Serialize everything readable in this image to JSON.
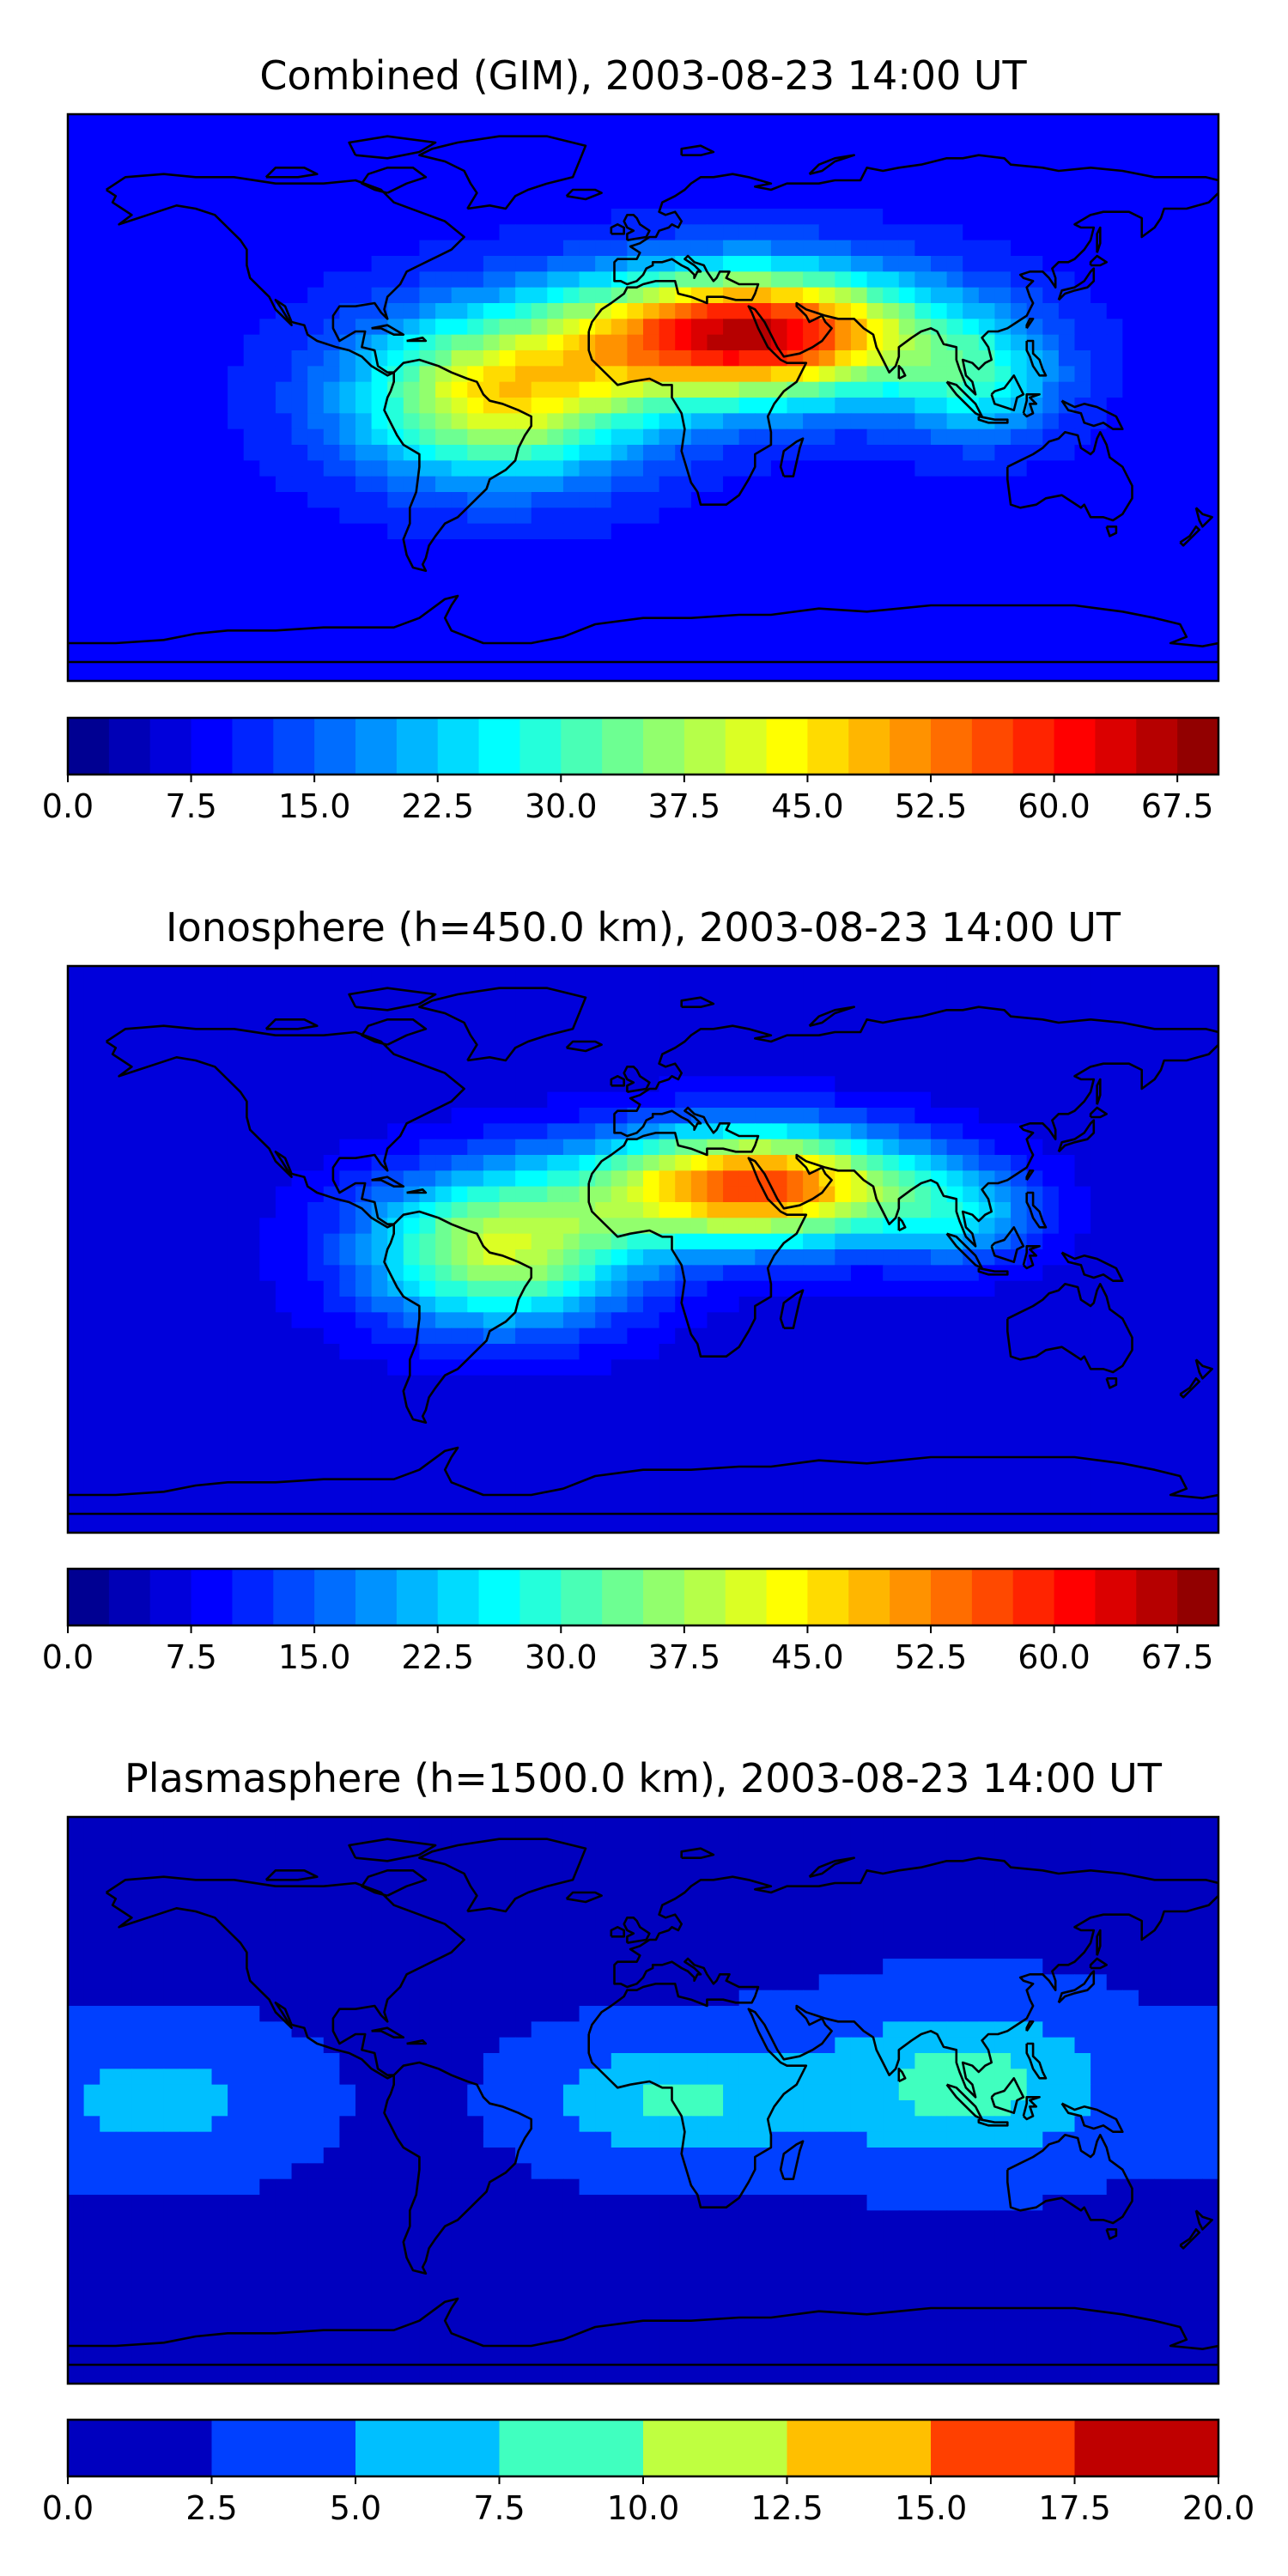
{
  "chart_data": [
    {
      "type": "heatmap",
      "title": "Combined (GIM), 2003-08-23 14:00 UT",
      "map": "world-coastlines",
      "colormap": "jet",
      "colorbar": {
        "ticks": [
          "0.0",
          "7.5",
          "15.0",
          "22.5",
          "30.0",
          "37.5",
          "45.0",
          "52.5",
          "60.0",
          "67.5"
        ],
        "range": [
          0,
          70
        ],
        "levels": 28,
        "placement": "below"
      },
      "field_peaks": [
        {
          "lon": 33,
          "lat": 20,
          "value": 66,
          "lonRadius": 55,
          "latRadius": 20
        },
        {
          "lon": -45,
          "lat": 0,
          "value": 44,
          "lonRadius": 45,
          "latRadius": 25
        },
        {
          "lon": 105,
          "lat": 5,
          "value": 25,
          "lonRadius": 25,
          "latRadius": 18
        }
      ],
      "background_value": 9
    },
    {
      "type": "heatmap",
      "title": "Ionosphere  (h=450.0 km), 2003-08-23 14:00 UT",
      "map": "world-coastlines",
      "colormap": "jet",
      "colorbar": {
        "ticks": [
          "0.0",
          "7.5",
          "15.0",
          "22.5",
          "30.0",
          "37.5",
          "45.0",
          "52.5",
          "60.0",
          "67.5"
        ],
        "range": [
          0,
          70
        ],
        "levels": 28,
        "placement": "below"
      },
      "field_peaks": [
        {
          "lon": 35,
          "lat": 20,
          "value": 57,
          "lonRadius": 50,
          "latRadius": 18
        },
        {
          "lon": -45,
          "lat": 0,
          "value": 40,
          "lonRadius": 42,
          "latRadius": 24
        },
        {
          "lon": 100,
          "lat": 10,
          "value": 20,
          "lonRadius": 25,
          "latRadius": 15
        }
      ],
      "background_value": 6
    },
    {
      "type": "heatmap",
      "title": "Plasmasphere (h=1500.0 km), 2003-08-23 14:00 UT",
      "map": "world-coastlines",
      "colormap": "jet",
      "colorbar": {
        "ticks": [
          "0.0",
          "2.5",
          "5.0",
          "7.5",
          "10.0",
          "12.5",
          "15.0",
          "17.5",
          "20.0"
        ],
        "range": [
          0,
          20
        ],
        "levels": 8,
        "placement": "below"
      },
      "field_peaks": [
        {
          "lon": 100,
          "lat": 5,
          "value": 8.5,
          "lonRadius": 45,
          "latRadius": 25
        },
        {
          "lon": 10,
          "lat": 0,
          "value": 8,
          "lonRadius": 40,
          "latRadius": 20
        },
        {
          "lon": -150,
          "lat": 0,
          "value": 6,
          "lonRadius": 40,
          "latRadius": 22
        }
      ],
      "background_value": 2
    }
  ],
  "colors": {
    "axes_frame": "#000000",
    "coastline": "#000000",
    "background": "#ffffff"
  }
}
